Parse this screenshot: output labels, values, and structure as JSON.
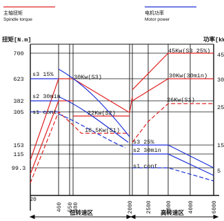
{
  "legend": {
    "spindle_zh": "主轴扭矩",
    "spindle_en": "Spindle torque",
    "motor_zh": "电机功率",
    "motor_en": "Motor power",
    "spindle_color": "#e02020",
    "motor_color": "#1a2fd6"
  },
  "axes": {
    "left_label": "扭矩[N.m]",
    "right_label": "功率[kW]",
    "left_ticks": [
      "700",
      "623",
      "382",
      "305",
      "153",
      "115",
      "99.3"
    ],
    "right_ticks": [
      "45",
      "30",
      "25",
      "15",
      "5"
    ],
    "x_ticks": [
      "20",
      "460",
      "550",
      "580",
      "2000",
      "2500",
      "2800",
      "4000",
      "6000"
    ],
    "zone_low": "低转速区",
    "zone_high": "高转速区"
  },
  "chart_data": {
    "type": "line",
    "title": "",
    "xlabel": "",
    "ylabel": "扭矩[N.m]",
    "y2label": "功率[kW]",
    "x_ticks": [
      20,
      460,
      550,
      580,
      2000,
      2500,
      2800,
      4000,
      6000
    ],
    "y_ticks_left": [
      700,
      623,
      382,
      305,
      153,
      115,
      99.3
    ],
    "y_ticks_right": [
      45,
      30,
      25,
      15,
      5
    ],
    "zones": [
      "低转速区",
      "高转速区"
    ],
    "annotations": [
      "s3 15%",
      "s2 30min",
      "s1 cont",
      "30Kw(S3)",
      "22Kw(S2)",
      "18.5Kw(S1)",
      "45Kw(S3 25%)",
      "30Kw(30min)",
      "26Kw(S1)",
      "s3 25%",
      "s2 30min",
      "s1 cont"
    ],
    "series": [
      {
        "name": "Spindle torque",
        "color": "#e02020"
      },
      {
        "name": "Motor power",
        "color": "#1a2fd6"
      }
    ]
  }
}
